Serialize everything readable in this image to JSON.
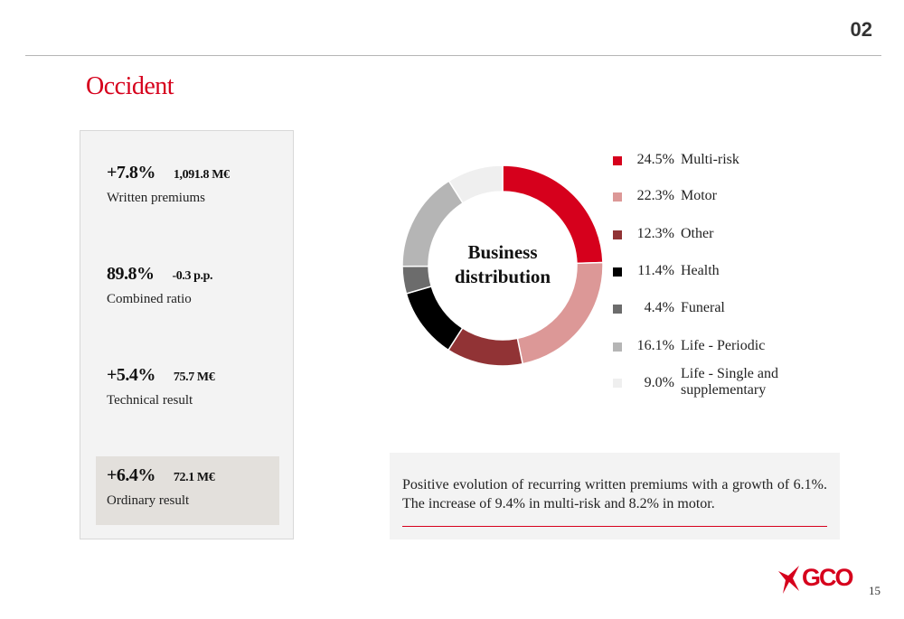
{
  "header": {
    "section_number": "02",
    "title": "Occident"
  },
  "kpis": [
    {
      "pct": "+7.8%",
      "value": "1,091.8 M€",
      "label": "Written premiums",
      "highlighted": false
    },
    {
      "pct": "89.8%",
      "value": "-0.3 p.p.",
      "label": "Combined ratio",
      "highlighted": false
    },
    {
      "pct": "+5.4%",
      "value": "75.7 M€",
      "label": "Technical result",
      "highlighted": false
    },
    {
      "pct": "+6.4%",
      "value": "72.1 M€",
      "label": "Ordinary result",
      "highlighted": true
    }
  ],
  "chart_data": {
    "type": "pie",
    "title": "Business distribution",
    "center_label_lines": [
      "Business",
      "distribution"
    ],
    "legend_position": "right",
    "slices": [
      {
        "label": "Multi-risk",
        "value": 24.5,
        "display": "24.5%",
        "color": "#d6001c"
      },
      {
        "label": "Motor",
        "value": 22.3,
        "display": "22.3%",
        "color": "#dc9897"
      },
      {
        "label": "Other",
        "value": 12.3,
        "display": "12.3%",
        "color": "#913335"
      },
      {
        "label": "Health",
        "value": 11.4,
        "display": "11.4%",
        "color": "#000000"
      },
      {
        "label": "Funeral",
        "value": 4.4,
        "display": "4.4%",
        "color": "#6c6c6c"
      },
      {
        "label": "Life - Periodic",
        "value": 16.1,
        "display": "16.1%",
        "color": "#b5b5b5"
      },
      {
        "label": "Life - Single and supplementary",
        "value": 9.0,
        "display": "9.0%",
        "color": "#efefef"
      }
    ]
  },
  "note": {
    "text": "Positive evolution of recurring written premiums with a growth of 6.1%. The increase of 9.4% in multi-risk and 8.2% in motor."
  },
  "footer": {
    "logo_text": "GCO",
    "page_number": "15"
  },
  "colors": {
    "accent": "#d6001c"
  }
}
